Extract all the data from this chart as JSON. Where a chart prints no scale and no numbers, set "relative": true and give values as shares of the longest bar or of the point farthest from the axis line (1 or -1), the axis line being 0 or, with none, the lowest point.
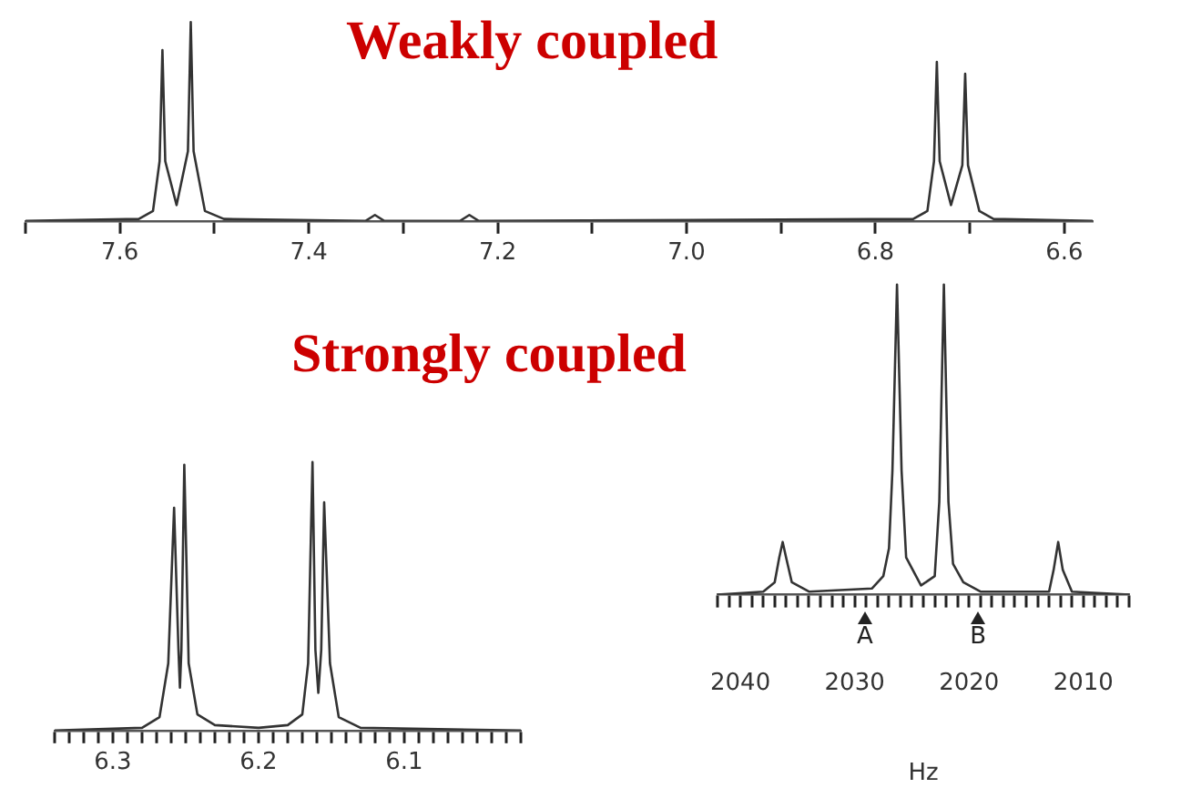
{
  "chart_data": [
    {
      "type": "line",
      "title": "Weakly coupled",
      "relative": true,
      "color": "#333333",
      "x": [
        7.7,
        7.58,
        7.565,
        7.558,
        7.555,
        7.552,
        7.54,
        7.528,
        7.525,
        7.522,
        7.51,
        7.49,
        7.34,
        7.33,
        7.32,
        7.24,
        7.23,
        7.22,
        6.76,
        6.745,
        6.738,
        6.735,
        6.732,
        6.72,
        6.708,
        6.705,
        6.702,
        6.69,
        6.675,
        6.57
      ],
      "values": [
        0,
        0.01,
        0.05,
        0.3,
        0.86,
        0.3,
        0.08,
        0.35,
        1,
        0.35,
        0.05,
        0.01,
        0,
        0.03,
        0,
        0,
        0.03,
        0,
        0.01,
        0.05,
        0.3,
        0.8,
        0.3,
        0.08,
        0.28,
        0.74,
        0.28,
        0.05,
        0.01,
        0
      ],
      "xlim": [
        7.7,
        6.57
      ],
      "xticks": [
        {
          "value": 7.7,
          "label": null
        },
        7.6,
        {
          "value": 7.5,
          "label": null
        },
        7.4,
        {
          "value": 7.3,
          "label": null
        },
        7.2,
        {
          "value": 7.1,
          "label": null
        },
        {
          "value": 7,
          "label": "7.0"
        },
        {
          "value": 6.9,
          "label": null
        },
        6.8,
        {
          "value": 6.7,
          "label": null
        },
        6.6
      ],
      "grid": false,
      "legend": false
    },
    {
      "type": "line",
      "title": "Strongly coupled",
      "relative": true,
      "color": "#333333",
      "x": [
        6.34,
        6.28,
        6.268,
        6.262,
        6.258,
        6.255,
        6.254,
        6.253,
        6.251,
        6.248,
        6.242,
        6.23,
        6.2,
        6.18,
        6.17,
        6.166,
        6.163,
        6.161,
        6.159,
        6.157,
        6.155,
        6.151,
        6.145,
        6.13,
        6.02
      ],
      "values": [
        0,
        0.01,
        0.05,
        0.25,
        0.83,
        0.3,
        0.16,
        0.3,
        0.99,
        0.25,
        0.06,
        0.02,
        0.01,
        0.02,
        0.06,
        0.25,
        1,
        0.3,
        0.14,
        0.3,
        0.85,
        0.25,
        0.05,
        0.01,
        0
      ],
      "xlim": [
        6.34,
        6.02
      ],
      "xticks": [
        {
          "value": 6.34,
          "label": null
        },
        {
          "value": 6.33,
          "label": null
        },
        {
          "value": 6.32,
          "label": null
        },
        {
          "value": 6.31,
          "label": null
        },
        6.3,
        {
          "value": 6.29,
          "label": null
        },
        {
          "value": 6.28,
          "label": null
        },
        {
          "value": 6.27,
          "label": null
        },
        {
          "value": 6.26,
          "label": null
        },
        {
          "value": 6.25,
          "label": null
        },
        {
          "value": 6.24,
          "label": null
        },
        {
          "value": 6.23,
          "label": null
        },
        {
          "value": 6.22,
          "label": null
        },
        {
          "value": 6.21,
          "label": null
        },
        6.2,
        {
          "value": 6.19,
          "label": null
        },
        {
          "value": 6.18,
          "label": null
        },
        {
          "value": 6.17,
          "label": null
        },
        {
          "value": 6.16,
          "label": null
        },
        {
          "value": 6.15,
          "label": null
        },
        {
          "value": 6.14,
          "label": null
        },
        {
          "value": 6.13,
          "label": null
        },
        {
          "value": 6.12,
          "label": null
        },
        {
          "value": 6.11,
          "label": null
        },
        6.1,
        {
          "value": 6.09,
          "label": null
        },
        {
          "value": 6.08,
          "label": null
        },
        {
          "value": 6.07,
          "label": null
        },
        {
          "value": 6.06,
          "label": null
        },
        {
          "value": 6.05,
          "label": null
        },
        {
          "value": 6.04,
          "label": null
        },
        {
          "value": 6.03,
          "label": null
        },
        {
          "value": 6.02,
          "label": null
        }
      ],
      "grid": false,
      "legend": false
    },
    {
      "type": "line",
      "xlabel": "Hz",
      "relative": true,
      "color": "#333333",
      "x": [
        2042,
        2038,
        2037,
        2036.6,
        2036.3,
        2036,
        2035.5,
        2034,
        2028.5,
        2027.5,
        2027,
        2026.7,
        2026.3,
        2025.9,
        2025.5,
        2024.2,
        2023,
        2022.6,
        2022.2,
        2021.8,
        2021.4,
        2020.5,
        2019,
        2013,
        2012.6,
        2012.2,
        2011.8,
        2011,
        2006
      ],
      "values": [
        0,
        0.01,
        0.04,
        0.12,
        0.17,
        0.12,
        0.04,
        0.01,
        0.02,
        0.06,
        0.15,
        0.4,
        1,
        0.4,
        0.12,
        0.03,
        0.06,
        0.3,
        1,
        0.3,
        0.1,
        0.04,
        0.01,
        0.01,
        0.08,
        0.17,
        0.08,
        0.01,
        0
      ],
      "xlim": [
        2042,
        2006
      ],
      "xticks": [
        {
          "value": 2042,
          "label": null
        },
        {
          "value": 2041,
          "label": null
        },
        2040,
        {
          "value": 2039,
          "label": null
        },
        {
          "value": 2038,
          "label": null
        },
        {
          "value": 2037,
          "label": null
        },
        {
          "value": 2036,
          "label": null
        },
        {
          "value": 2035,
          "label": null
        },
        {
          "value": 2034,
          "label": null
        },
        {
          "value": 2033,
          "label": null
        },
        {
          "value": 2032,
          "label": null
        },
        {
          "value": 2031,
          "label": null
        },
        2030,
        {
          "value": 2029,
          "label": null
        },
        {
          "value": 2028,
          "label": null
        },
        {
          "value": 2027,
          "label": null
        },
        {
          "value": 2026,
          "label": null
        },
        {
          "value": 2025,
          "label": null
        },
        {
          "value": 2024,
          "label": null
        },
        {
          "value": 2023,
          "label": null
        },
        {
          "value": 2022,
          "label": null
        },
        {
          "value": 2021,
          "label": null
        },
        2020,
        {
          "value": 2019,
          "label": null
        },
        {
          "value": 2018,
          "label": null
        },
        {
          "value": 2017,
          "label": null
        },
        {
          "value": 2016,
          "label": null
        },
        {
          "value": 2015,
          "label": null
        },
        {
          "value": 2014,
          "label": null
        },
        {
          "value": 2013,
          "label": null
        },
        {
          "value": 2012,
          "label": null
        },
        {
          "value": 2011,
          "label": null
        },
        2010,
        {
          "value": 2009,
          "label": null
        },
        {
          "value": 2008,
          "label": null
        },
        {
          "value": 2007,
          "label": null
        },
        {
          "value": 2006,
          "label": null
        }
      ],
      "annotations": [
        {
          "text": "A",
          "x": 2029.1,
          "y": 0
        },
        {
          "text": "B",
          "x": 2019.2,
          "y": 0
        }
      ],
      "grid": false,
      "legend": false
    }
  ]
}
